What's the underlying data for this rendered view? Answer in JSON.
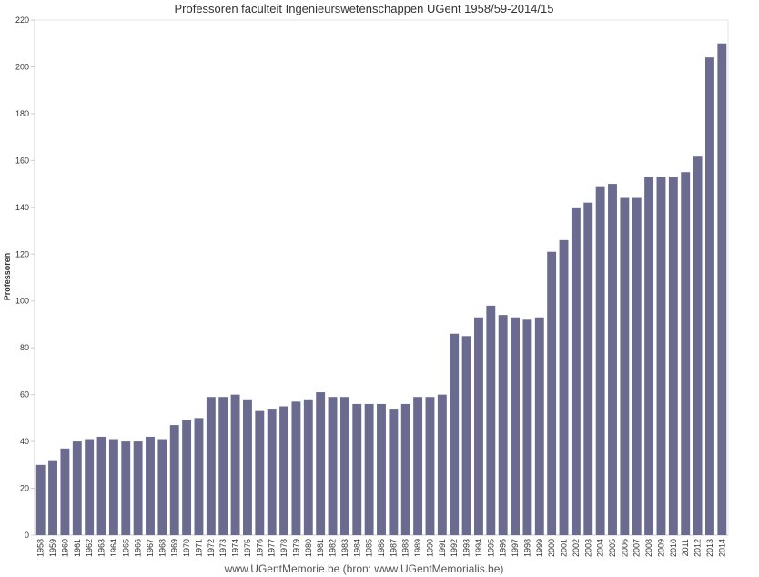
{
  "chart_data": {
    "type": "bar",
    "title": "Professoren faculteit Ingenieurswetenschappen UGent 1958/59-2014/15",
    "xlabel": "",
    "ylabel": "Professoren",
    "footer": "www.UGentMemorie.be (bron: www.UGentMemorialis.be)",
    "ylim": [
      0,
      220
    ],
    "yticks": [
      0,
      20,
      40,
      60,
      80,
      100,
      120,
      140,
      160,
      180,
      200,
      220
    ],
    "grid": false,
    "bar_color": "#6b6b8f",
    "categories": [
      "1958",
      "1959",
      "1960",
      "1961",
      "1962",
      "1963",
      "1964",
      "1965",
      "1966",
      "1967",
      "1968",
      "1969",
      "1970",
      "1971",
      "1972",
      "1973",
      "1974",
      "1975",
      "1976",
      "1977",
      "1978",
      "1979",
      "1980",
      "1981",
      "1982",
      "1983",
      "1984",
      "1985",
      "1986",
      "1987",
      "1988",
      "1989",
      "1990",
      "1991",
      "1992",
      "1993",
      "1994",
      "1995",
      "1996",
      "1997",
      "1998",
      "1999",
      "2000",
      "2001",
      "2002",
      "2003",
      "2004",
      "2005",
      "2006",
      "2007",
      "2008",
      "2009",
      "2010",
      "2011",
      "2012",
      "2013",
      "2014"
    ],
    "values": [
      30,
      32,
      37,
      40,
      41,
      42,
      41,
      40,
      40,
      42,
      41,
      47,
      49,
      50,
      59,
      59,
      60,
      58,
      53,
      54,
      55,
      57,
      58,
      61,
      59,
      59,
      56,
      56,
      56,
      54,
      56,
      59,
      59,
      60,
      86,
      85,
      93,
      98,
      94,
      93,
      92,
      93,
      121,
      126,
      140,
      142,
      149,
      150,
      144,
      144,
      153,
      153,
      153,
      155,
      162,
      204,
      210
    ]
  }
}
